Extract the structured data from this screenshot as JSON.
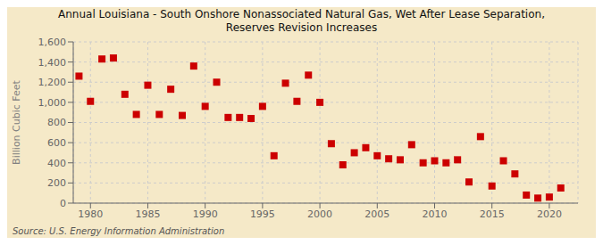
{
  "chart_data": {
    "type": "scatter",
    "title": "Annual Louisiana - South Onshore Nonassociated Natural Gas, Wet After Lease Separation,\nReserves Revision Increases",
    "y_label": "Billion Cubic Feet",
    "annotation": "Source: U.S. Energy Information Administration",
    "x": [
      1979,
      1980,
      1981,
      1982,
      1983,
      1984,
      1985,
      1986,
      1987,
      1988,
      1989,
      1990,
      1991,
      1992,
      1993,
      1994,
      1995,
      1996,
      1997,
      1998,
      1999,
      2000,
      2001,
      2002,
      2003,
      2004,
      2005,
      2006,
      2007,
      2008,
      2009,
      2010,
      2011,
      2012,
      2013,
      2014,
      2015,
      2016,
      2017,
      2018,
      2019,
      2020,
      2021
    ],
    "values": [
      1260,
      1010,
      1430,
      1440,
      1080,
      880,
      1170,
      880,
      1130,
      870,
      1360,
      960,
      1200,
      850,
      850,
      840,
      960,
      470,
      1190,
      1010,
      1270,
      1000,
      590,
      380,
      500,
      550,
      470,
      440,
      430,
      580,
      400,
      420,
      400,
      430,
      210,
      660,
      170,
      420,
      290,
      80,
      50,
      60,
      150
    ],
    "color": "#cc0000",
    "marker": "square",
    "xlim": [
      1978.5,
      2022.5
    ],
    "xticks": [
      1980,
      1985,
      1990,
      1995,
      2000,
      2005,
      2010,
      2015,
      2020
    ],
    "ylim": [
      0,
      1600
    ],
    "yticks": [
      0,
      200,
      400,
      600,
      {
        "value": 800,
        "label": "800"
      },
      {
        "value": 1000,
        "label": "1,000"
      },
      {
        "value": 1200,
        "label": "1,200"
      },
      {
        "value": 1400,
        "label": "1,400"
      },
      {
        "value": 1600,
        "label": "1,600"
      }
    ],
    "grid": true
  }
}
